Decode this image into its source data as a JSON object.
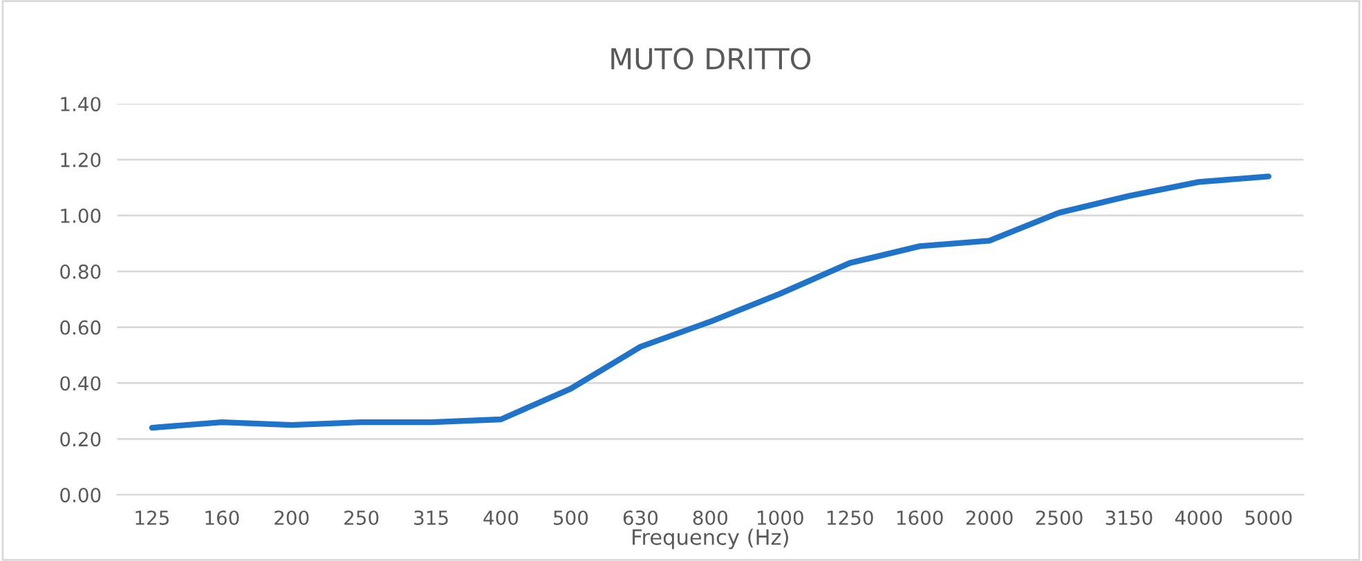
{
  "chart_data": {
    "type": "line",
    "title": "MUTO DRITTO",
    "xlabel": "Frequency (Hz)",
    "categories": [
      "125",
      "160",
      "200",
      "250",
      "315",
      "400",
      "500",
      "630",
      "800",
      "1000",
      "1250",
      "1600",
      "2000",
      "2500",
      "3150",
      "4000",
      "5000"
    ],
    "series": [
      {
        "color": "#1f73c8",
        "values": [
          0.24,
          0.26,
          0.25,
          0.26,
          0.26,
          0.27,
          0.38,
          0.53,
          0.62,
          0.72,
          0.83,
          0.89,
          0.91,
          1.01,
          1.07,
          1.12,
          1.14
        ]
      }
    ],
    "ylim": [
      0,
      1.4
    ],
    "yticks": [
      {
        "value": 0,
        "label": "0.00"
      },
      {
        "value": 0.2,
        "label": "0.20"
      },
      {
        "value": 0.4,
        "label": "0.40"
      },
      {
        "value": 0.6,
        "label": "0.60"
      },
      {
        "value": 0.8,
        "label": "0.80"
      },
      {
        "value": 1.0,
        "label": "1.00"
      },
      {
        "value": 1.2,
        "label": "1.20"
      },
      {
        "value": 1.4,
        "label": "1.40"
      }
    ],
    "grid": "y",
    "marker": "none",
    "line_style": "solid"
  }
}
